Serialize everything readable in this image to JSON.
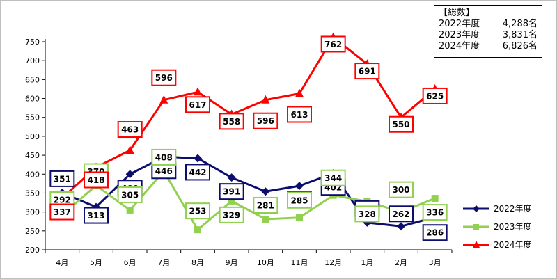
{
  "summary": {
    "title": "【総数】",
    "rows": [
      {
        "label": "2022年度",
        "value": "4,288名"
      },
      {
        "label": "2023年度",
        "value": "3,831名"
      },
      {
        "label": "2024年度",
        "value": "6,826名"
      }
    ]
  },
  "chart_data": {
    "type": "line",
    "title": "",
    "xlabel": "",
    "ylabel": "",
    "categories": [
      "4月",
      "5月",
      "6月",
      "7月",
      "8月",
      "9月",
      "10月",
      "11月",
      "12月",
      "1月",
      "2月",
      "3月"
    ],
    "ylim": [
      200,
      750
    ],
    "yticks": [
      200,
      250,
      300,
      350,
      400,
      450,
      500,
      550,
      600,
      650,
      700,
      750
    ],
    "grid": false,
    "legend_position": "right",
    "series": [
      {
        "name": "2022年度",
        "color": "#0d0d6e",
        "marker": "diamond",
        "values": [
          351,
          313,
          400,
          446,
          442,
          391,
          354,
          369,
          402,
          272,
          262,
          286
        ]
      },
      {
        "name": "2023年度",
        "color": "#92d050",
        "marker": "square",
        "values": [
          292,
          370,
          305,
          408,
          253,
          329,
          281,
          285,
          344,
          328,
          300,
          336
        ]
      },
      {
        "name": "2024年度",
        "color": "#ff0000",
        "marker": "triangle",
        "values": [
          337,
          418,
          463,
          596,
          617,
          558,
          596,
          613,
          762,
          691,
          550,
          625
        ]
      }
    ]
  }
}
